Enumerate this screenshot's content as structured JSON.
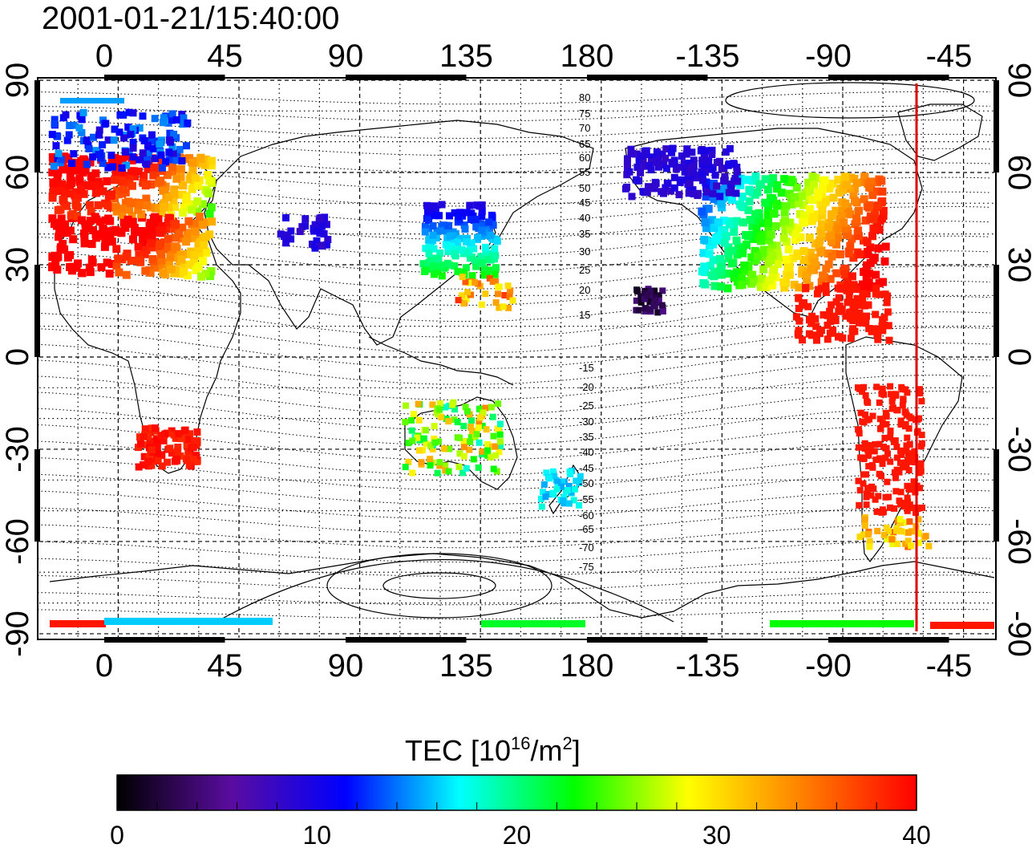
{
  "title": "2001-01-21/15:40:00",
  "colorbar": {
    "title_main": "TEC  [10",
    "title_sup": "16",
    "title_mid": "/m",
    "title_sup2": "2",
    "title_end": "]",
    "ticks": [
      "0",
      "10",
      "20",
      "30",
      "40"
    ],
    "range": [
      0,
      40
    ],
    "colors": [
      "#000000",
      "#5a0ca0",
      "#0000ff",
      "#00ffff",
      "#00ff00",
      "#ffff00",
      "#ff8000",
      "#ff0000"
    ]
  },
  "axes": {
    "x_ticks": [
      "0",
      "45",
      "90",
      "135",
      "180",
      "-135",
      "-90",
      "-45"
    ],
    "y_ticks_left": [
      "90",
      "60",
      "30",
      "0",
      "-30",
      "-60",
      "-90"
    ],
    "y_ticks_right": [
      "90",
      "60",
      "30",
      "0",
      "-30",
      "-60",
      "-90"
    ]
  },
  "contour_labels": [
    "80",
    "75",
    "70",
    "65",
    "60",
    "55",
    "50",
    "45",
    "40",
    "35",
    "30",
    "25",
    "20",
    "15",
    "-15",
    "-20",
    "-25",
    "-30",
    "-35",
    "-40",
    "-45",
    "-50",
    "-55",
    "-60",
    "-65",
    "-70",
    "-75"
  ],
  "colors": {
    "terminator_line": "#e00000",
    "grid": "#000000",
    "coast": "#000000"
  }
}
